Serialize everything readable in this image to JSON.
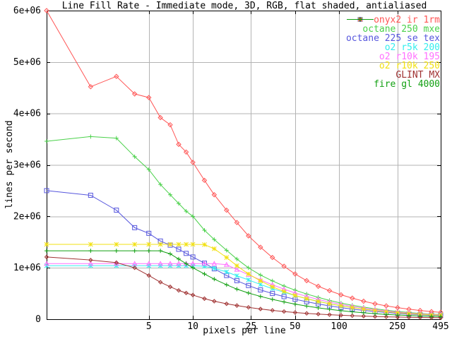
{
  "colors": {
    "background": "#ffffff",
    "border": "#000000",
    "grid": "#b3b3b3",
    "text": "#000000"
  },
  "chart_data": {
    "type": "line",
    "title": "Line Fill Rate - Immediate mode, 3D, RGB, flat shaded, antialiased",
    "xlabel": "pixels per line",
    "ylabel": "lines per second",
    "xscale": "log",
    "xlim": [
      1,
      495
    ],
    "ylim": [
      0,
      6000000.0
    ],
    "grid": true,
    "legend_position": "top-right-inside",
    "xticks": {
      "values": [
        5,
        10,
        25,
        50,
        100,
        250,
        495
      ],
      "labels": [
        "5",
        "10",
        "25",
        "50",
        "100",
        "250",
        "495"
      ]
    },
    "yticks": {
      "values": [
        0,
        1000000.0,
        2000000.0,
        3000000.0,
        4000000.0,
        5000000.0,
        6000000.0
      ],
      "labels": [
        "0",
        "1e+06",
        "2e+06",
        "3e+06",
        "4e+06",
        "5e+06",
        "6e+06"
      ]
    },
    "x": [
      1,
      2,
      3,
      4,
      5,
      6,
      7,
      8,
      9,
      10,
      12,
      14,
      17,
      20,
      24,
      29,
      35,
      42,
      50,
      60,
      72,
      86,
      103,
      123,
      147,
      176,
      210,
      251,
      300,
      358,
      428,
      495
    ],
    "series": [
      {
        "name": "onyx2 ir 1rm",
        "key": "onyx2-ir-1rm",
        "color": "#ff5555",
        "marker": "diamond",
        "values": [
          6000000.0,
          4520000.0,
          4720000.0,
          4380000.0,
          4310000.0,
          3920000.0,
          3780000.0,
          3400000.0,
          3250000.0,
          3050000.0,
          2700000.0,
          2420000.0,
          2120000.0,
          1880000.0,
          1620000.0,
          1400000.0,
          1200000.0,
          1030000.0,
          880000.0,
          750000.0,
          640000.0,
          555000.0,
          475000.0,
          410000.0,
          350000.0,
          300000.0,
          260000.0,
          225000.0,
          195000.0,
          170000.0,
          148000.0,
          135000.0
        ]
      },
      {
        "name": "octane 250 mxe",
        "key": "octane-250-mxe",
        "color": "#4ad14a",
        "marker": "plus",
        "values": [
          3460000.0,
          3550000.0,
          3520000.0,
          3160000.0,
          2910000.0,
          2620000.0,
          2420000.0,
          2250000.0,
          2100000.0,
          2000000.0,
          1730000.0,
          1550000.0,
          1340000.0,
          1170000.0,
          1000000.0,
          860000.0,
          745000.0,
          645000.0,
          565000.0,
          490000.0,
          425000.0,
          365000.0,
          315000.0,
          272000.0,
          235000.0,
          203000.0,
          175000.0,
          151000.0,
          130000.0,
          112000.0,
          98000.0,
          90000.0
        ]
      },
      {
        "name": "octane 225 se tex",
        "key": "octane-225-se-tex",
        "color": "#5656dd",
        "marker": "square",
        "values": [
          2500000.0,
          2410000.0,
          2120000.0,
          1780000.0,
          1670000.0,
          1520000.0,
          1440000.0,
          1360000.0,
          1280000.0,
          1210000.0,
          1090000.0,
          980000.0,
          850000.0,
          750000.0,
          655000.0,
          570000.0,
          500000.0,
          440000.0,
          388000.0,
          340000.0,
          297000.0,
          259000.0,
          226000.0,
          197000.0,
          171000.0,
          149000.0,
          130000.0,
          114000.0,
          100000.0,
          89000.0,
          80000.0,
          76000.0
        ]
      },
      {
        "name": "o2 r5k 200",
        "key": "o2-r5k-200",
        "color": "#33eeee",
        "marker": "asterisk",
        "values": [
          1040000.0,
          1040000.0,
          1040000.0,
          1040000.0,
          1040000.0,
          1040000.0,
          1040000.0,
          1040000.0,
          1040000.0,
          1040000.0,
          1030000.0,
          990000.0,
          920000.0,
          845000.0,
          765000.0,
          675000.0,
          595000.0,
          525000.0,
          460000.0,
          400000.0,
          348000.0,
          302000.0,
          262000.0,
          227000.0,
          197000.0,
          171000.0,
          148000.0,
          129000.0,
          112000.0,
          98000.0,
          86000.0,
          82000.0
        ]
      },
      {
        "name": "o2 r10k 195",
        "key": "o2-r10k-195",
        "color": "#ff70ff",
        "marker": "triangle",
        "values": [
          1080000.0,
          1080000.0,
          1080000.0,
          1080000.0,
          1080000.0,
          1080000.0,
          1080000.0,
          1080000.0,
          1080000.0,
          1080000.0,
          1080000.0,
          1080000.0,
          1060000.0,
          965000.0,
          865000.0,
          765000.0,
          670000.0,
          585000.0,
          510000.0,
          443000.0,
          384000.0,
          332000.0,
          288000.0,
          249000.0,
          215000.0,
          186000.0,
          161000.0,
          139000.0,
          120000.0,
          105000.0,
          92000.0,
          87000.0
        ]
      },
      {
        "name": "o2 r10k 250",
        "key": "o2-r10k-250",
        "color": "#f2e112",
        "marker": "star",
        "values": [
          1455000.0,
          1455000.0,
          1455000.0,
          1455000.0,
          1455000.0,
          1455000.0,
          1455000.0,
          1455000.0,
          1455000.0,
          1455000.0,
          1450000.0,
          1370000.0,
          1200000.0,
          1040000.0,
          880000.0,
          745000.0,
          630000.0,
          540000.0,
          462000.0,
          398000.0,
          345000.0,
          300000.0,
          260000.0,
          226000.0,
          196000.0,
          170000.0,
          147000.0,
          128000.0,
          111000.0,
          97000.0,
          86000.0,
          82000.0
        ]
      },
      {
        "name": "GLINT MX",
        "key": "glint-mx",
        "color": "#a03232",
        "marker": "diamond-dot",
        "values": [
          1210000.0,
          1150000.0,
          1100000.0,
          1000000.0,
          850000.0,
          720000.0,
          630000.0,
          560000.0,
          510000.0,
          470000.0,
          400000.0,
          350000.0,
          300000.0,
          266000.0,
          231000.0,
          199000.0,
          172000.0,
          150000.0,
          131000.0,
          114000.0,
          100000.0,
          88000.0,
          77000.0,
          68000.0,
          60000.0,
          53000.0,
          47000.0,
          42000.0,
          38000.0,
          34000.0,
          31000.0,
          29000.0
        ]
      },
      {
        "name": "fire gl 4000",
        "key": "fire-gl-4000",
        "color": "#12a012",
        "marker": "plus",
        "values": [
          1330000.0,
          1330000.0,
          1330000.0,
          1330000.0,
          1330000.0,
          1330000.0,
          1270000.0,
          1170000.0,
          1080000.0,
          1000000.0,
          880000.0,
          780000.0,
          670000.0,
          585000.0,
          510000.0,
          443000.0,
          386000.0,
          337000.0,
          294000.0,
          255000.0,
          221000.0,
          192000.0,
          166000.0,
          144000.0,
          125000.0,
          108000.0,
          94000.0,
          82000.0,
          72000.0,
          63000.0,
          56000.0,
          53000.0
        ]
      }
    ]
  }
}
